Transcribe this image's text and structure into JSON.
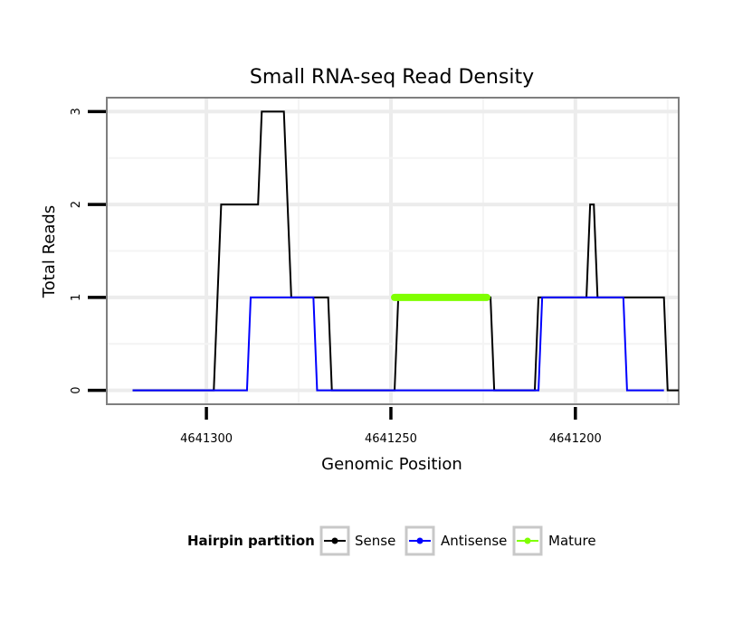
{
  "chart_data": {
    "type": "line",
    "title": "Small RNA-seq Read Density",
    "xlabel": "Genomic Position",
    "ylabel": "Total Reads",
    "x_reversed": true,
    "xlim": [
      4641327,
      4641172
    ],
    "ylim": [
      -0.15,
      3.15
    ],
    "x_ticks": [
      4641300,
      4641250,
      4641200
    ],
    "x_tick_labels": [
      "4641300",
      "4641250",
      "4641200"
    ],
    "y_ticks": [
      0,
      1,
      2,
      3
    ],
    "y_tick_labels": [
      "0",
      "1",
      "2",
      "3"
    ],
    "grid": true,
    "legend": {
      "title": "Hairpin partition",
      "position": "bottom",
      "entries": [
        {
          "label": "Sense",
          "color": "#000000"
        },
        {
          "label": "Antisense",
          "color": "#0000ff"
        },
        {
          "label": "Mature",
          "color": "#7fff00"
        }
      ]
    },
    "series": [
      {
        "name": "Sense",
        "color": "#000000",
        "points": [
          [
            4641320,
            0
          ],
          [
            4641298,
            0
          ],
          [
            4641296,
            2
          ],
          [
            4641286,
            2
          ],
          [
            4641285,
            3
          ],
          [
            4641279,
            3
          ],
          [
            4641277,
            1
          ],
          [
            4641267,
            1
          ],
          [
            4641266,
            0
          ],
          [
            4641249,
            0
          ],
          [
            4641248,
            1
          ],
          [
            4641223,
            1
          ],
          [
            4641222,
            0
          ],
          [
            4641211,
            0
          ],
          [
            4641210,
            1
          ],
          [
            4641197,
            1
          ],
          [
            4641196,
            2
          ],
          [
            4641195,
            2
          ],
          [
            4641194,
            1
          ],
          [
            4641176,
            1
          ],
          [
            4641175,
            0
          ],
          [
            4641172,
            0
          ]
        ]
      },
      {
        "name": "Antisense",
        "color": "#0000ff",
        "points": [
          [
            4641320,
            0
          ],
          [
            4641289,
            0
          ],
          [
            4641288,
            1
          ],
          [
            4641271,
            1
          ],
          [
            4641270,
            0
          ],
          [
            4641210,
            0
          ],
          [
            4641209,
            1
          ],
          [
            4641187,
            1
          ],
          [
            4641186,
            0
          ],
          [
            4641176,
            0
          ]
        ]
      },
      {
        "name": "Mature",
        "color": "#7fff00",
        "points": [
          [
            4641249,
            1
          ],
          [
            4641224,
            1
          ]
        ]
      }
    ]
  }
}
